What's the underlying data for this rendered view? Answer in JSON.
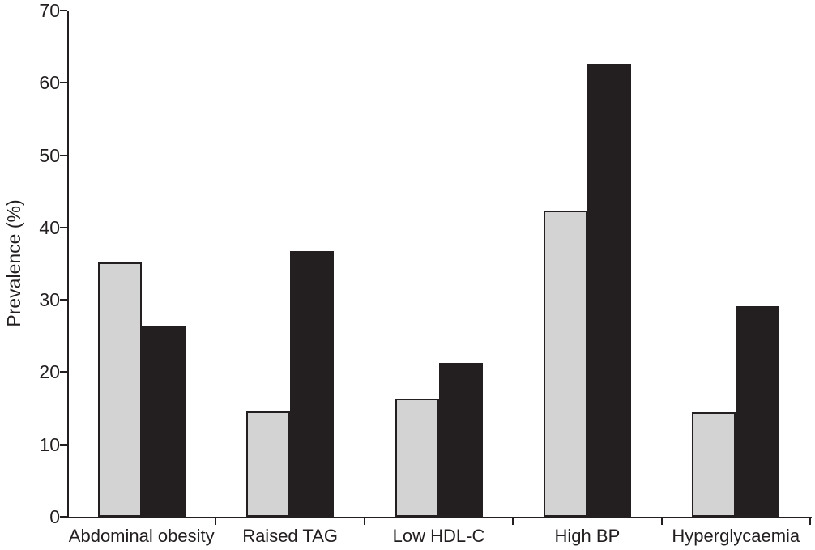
{
  "chart_data": {
    "type": "bar",
    "title": "",
    "ylabel": "Prevalence (%)",
    "xlabel": "",
    "ylim": [
      0,
      70
    ],
    "yticks": [
      0,
      10,
      20,
      30,
      40,
      50,
      60,
      70
    ],
    "grid": false,
    "legend_position": "none",
    "categories": [
      "Abdominal obesity",
      "Raised TAG",
      "Low HDL-C",
      "High BP",
      "Hyperglycaemia"
    ],
    "series": [
      {
        "name": "grey",
        "color": "#d3d3d3",
        "values": [
          35.2,
          14.6,
          16.3,
          42.3,
          14.4
        ]
      },
      {
        "name": "black",
        "color": "#231f20",
        "values": [
          26.3,
          36.7,
          21.3,
          62.6,
          29.1
        ]
      }
    ]
  },
  "colors": {
    "background": "#ffffff",
    "axis": "#231f20",
    "text": "#231f20",
    "bar_border": "#231f20"
  }
}
